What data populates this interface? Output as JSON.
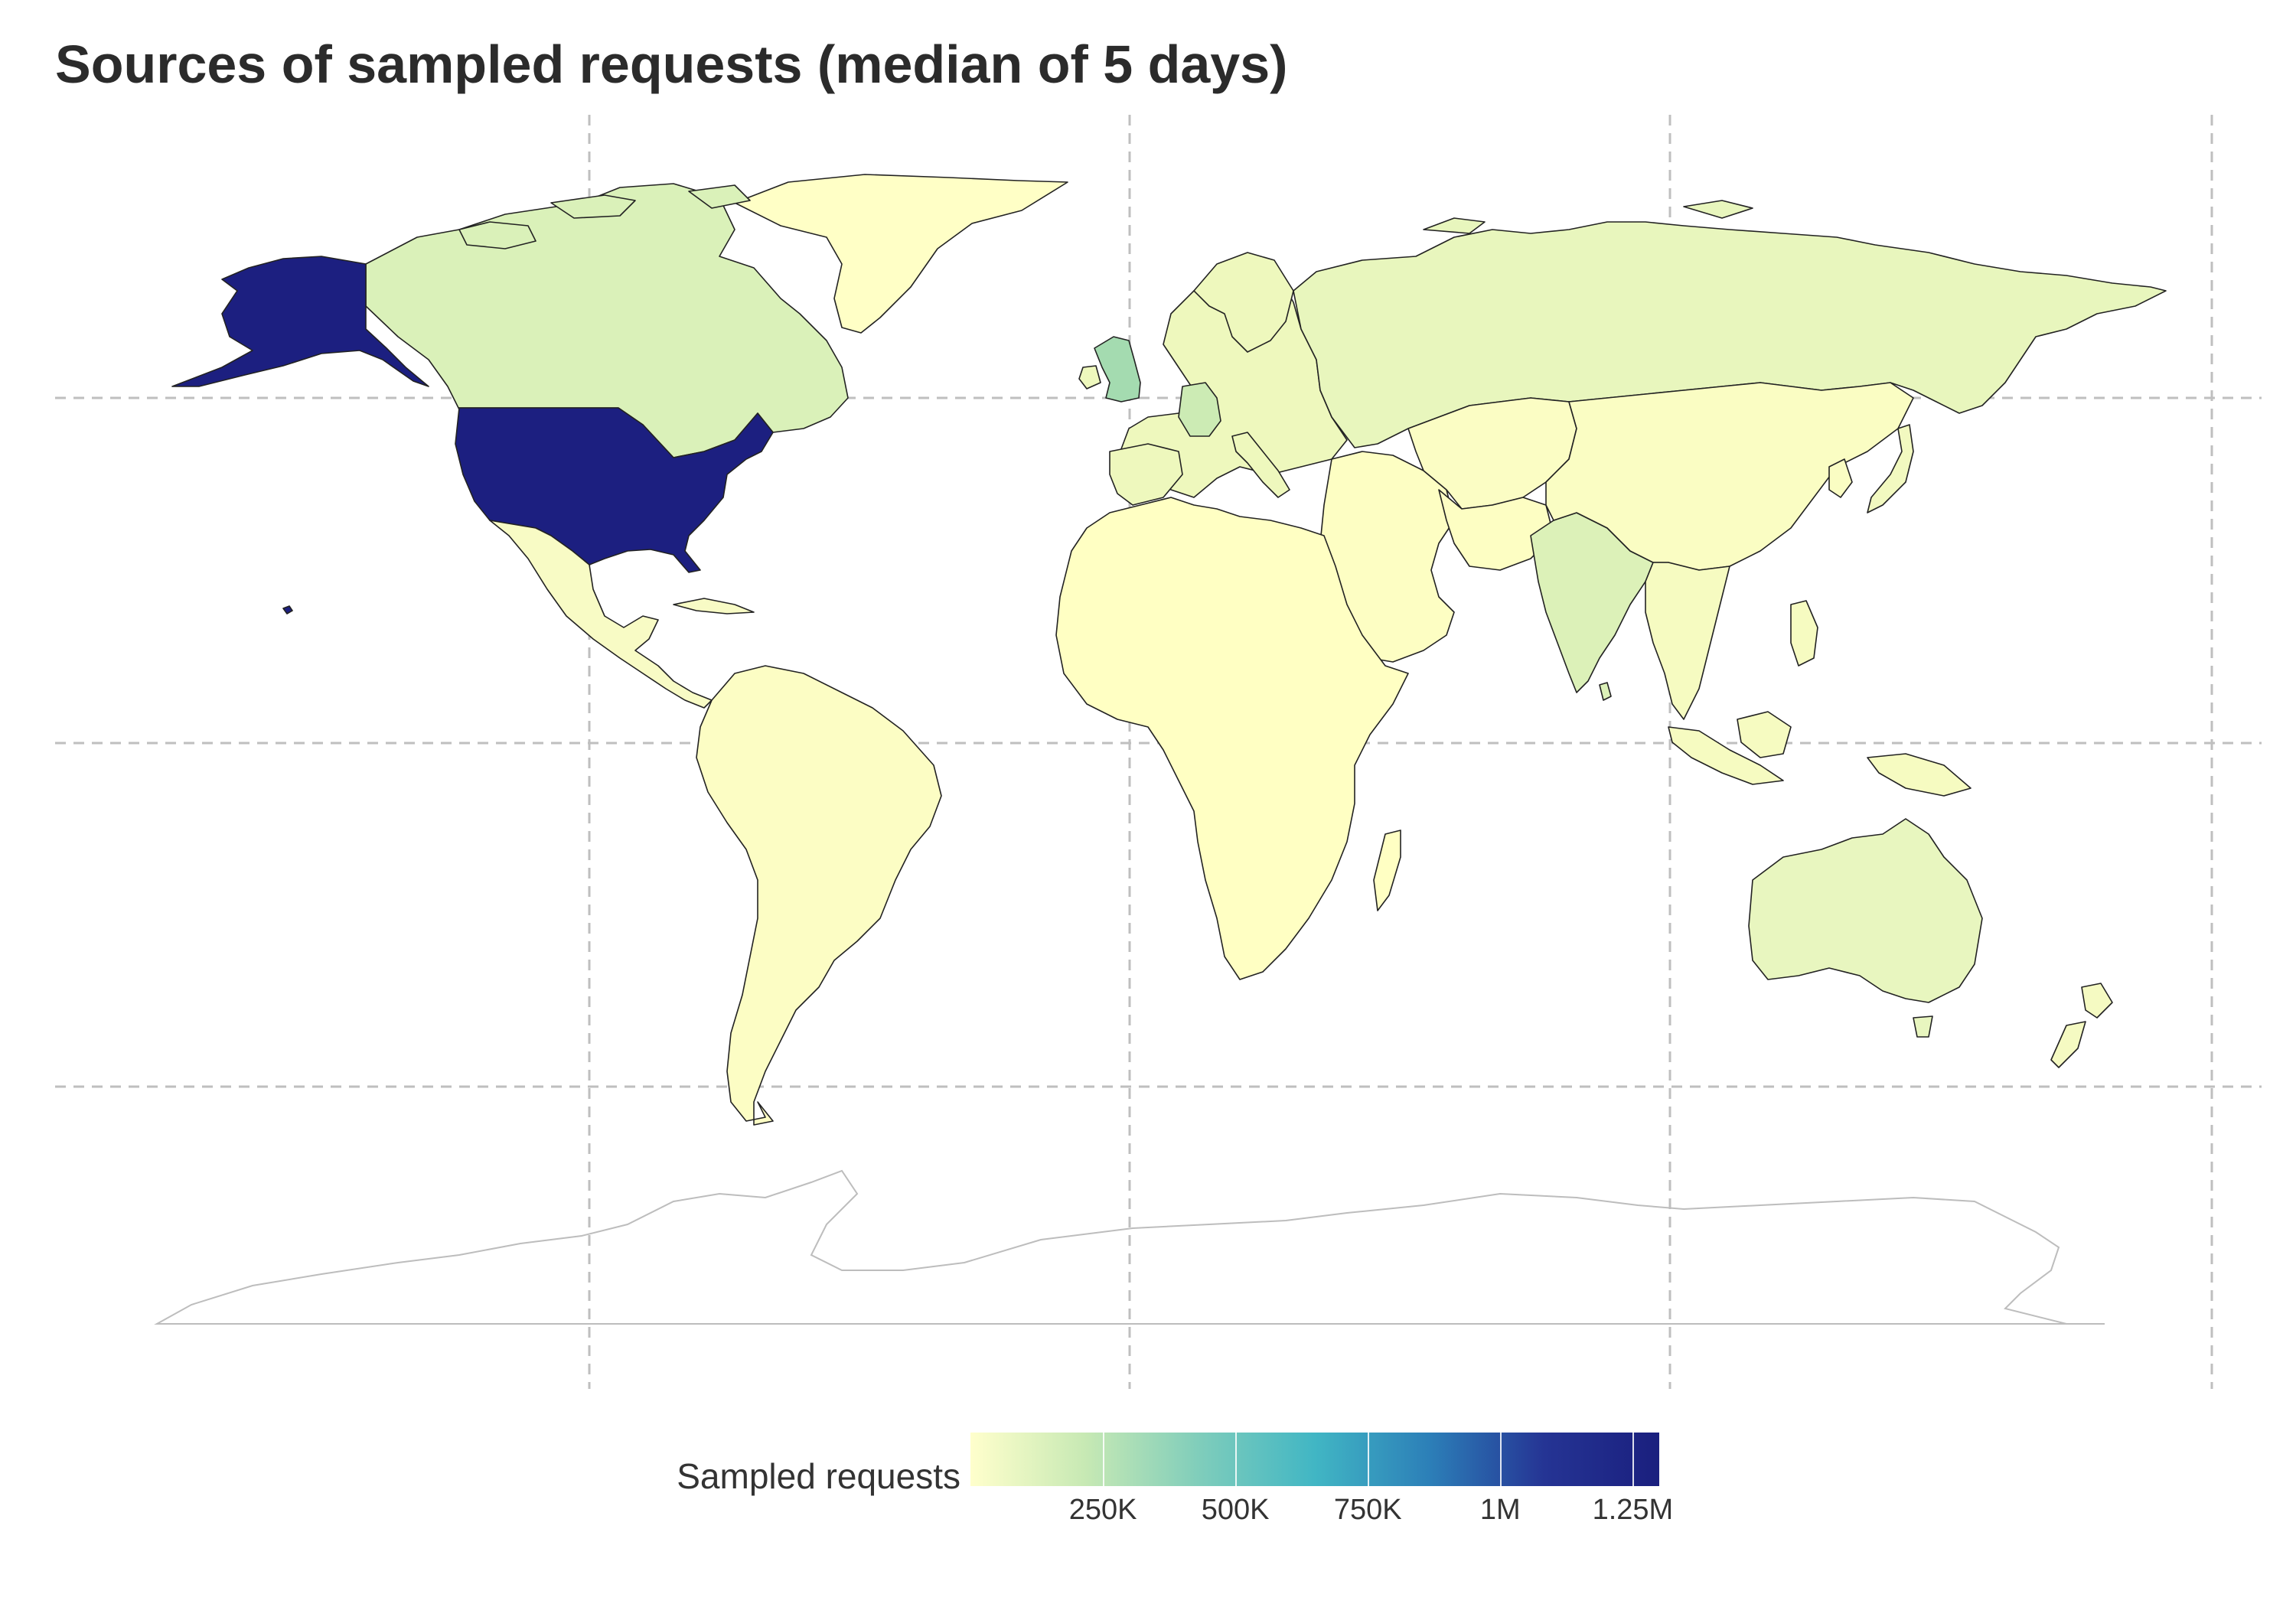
{
  "title": "Sources of sampled requests (median of 5 days)",
  "legend": {
    "title": "Sampled requests",
    "gradient": [
      "#ffffcc",
      "#c7e9b4",
      "#7fcdbb",
      "#41b6c4",
      "#2c7fb8",
      "#253494",
      "#1a1f7e"
    ],
    "min": 0,
    "max": 1300000,
    "ticks": [
      {
        "value": 250000,
        "label": "250K"
      },
      {
        "value": 500000,
        "label": "500K"
      },
      {
        "value": 750000,
        "label": "750K"
      },
      {
        "value": 1000000,
        "label": "1M"
      },
      {
        "value": 1250000,
        "label": "1.25M"
      }
    ]
  },
  "map": {
    "projection": "equirectangular",
    "grid": "dashed",
    "colors": {
      "ocean": "#ffffff",
      "border": "#222222",
      "antarctica_outline": "#bdbdbd",
      "grid": "#bfbfbf",
      "lowest": "#ffffcc"
    },
    "regions": [
      {
        "name": "United States",
        "level": 0.97,
        "color": "#1c1f80"
      },
      {
        "name": "Canada",
        "level": 0.12,
        "color": "#daf1b9"
      },
      {
        "name": "Mexico",
        "level": 0.03,
        "color": "#f8fbc5"
      },
      {
        "name": "Greenland",
        "level": 0.0,
        "color": "#ffffc6"
      },
      {
        "name": "South America",
        "level": 0.02,
        "color": "#fcfdc4"
      },
      {
        "name": "Europe",
        "level": 0.05,
        "color": "#eef8bd"
      },
      {
        "name": "United Kingdom",
        "level": 0.22,
        "color": "#a4dbb0"
      },
      {
        "name": "Germany",
        "level": 0.12,
        "color": "#ccebb4"
      },
      {
        "name": "Russia",
        "level": 0.05,
        "color": "#e8f6bd"
      },
      {
        "name": "Africa",
        "level": 0.0,
        "color": "#ffffc3"
      },
      {
        "name": "Middle East",
        "level": 0.01,
        "color": "#fdfec3"
      },
      {
        "name": "Central Asia",
        "level": 0.01,
        "color": "#fbfdc4"
      },
      {
        "name": "India",
        "level": 0.09,
        "color": "#dcf1b8"
      },
      {
        "name": "China",
        "level": 0.01,
        "color": "#fafdc3"
      },
      {
        "name": "Japan",
        "level": 0.03,
        "color": "#f2f9c0"
      },
      {
        "name": "Southeast Asia",
        "level": 0.02,
        "color": "#f6fbc1"
      },
      {
        "name": "Australia",
        "level": 0.05,
        "color": "#e8f6bf"
      },
      {
        "name": "New Zealand",
        "level": 0.02,
        "color": "#f5fac2"
      }
    ]
  }
}
